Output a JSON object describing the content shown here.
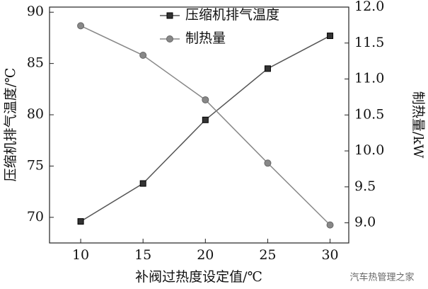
{
  "chart_data": {
    "type": "line",
    "x": [
      10,
      15,
      20,
      25,
      30
    ],
    "xlim": [
      7.5,
      31.5
    ],
    "xticks": [
      10,
      15,
      20,
      25,
      30
    ],
    "ylim": [
      67.5,
      90.5
    ],
    "yticks": [
      70,
      75,
      80,
      85,
      90
    ],
    "y2lim": [
      8.72,
      12.0
    ],
    "y2ticks": [
      {
        "value": 9,
        "label": "9.0"
      },
      9.5,
      {
        "value": 10,
        "label": "10.0"
      },
      10.5,
      {
        "value": 11,
        "label": "11.0"
      },
      11.5,
      {
        "value": 12,
        "label": "12.0"
      }
    ],
    "xlabel": "补阀过热度设定值/℃",
    "ylabel": "压缩机排气温度/℃",
    "y2label": "制热量/kW",
    "legend": "top",
    "series": [
      {
        "name": "压缩机排气温度",
        "color": "#555555",
        "marker": "square",
        "values": [
          69.6,
          73.3,
          79.5,
          84.5,
          87.7
        ]
      },
      {
        "name": "制热量",
        "color": "#888888",
        "marker": "circle",
        "axis": "y2",
        "values": [
          11.74,
          11.33,
          10.71,
          9.83,
          8.97
        ]
      }
    ],
    "watermark": "汽车热管理之家"
  }
}
